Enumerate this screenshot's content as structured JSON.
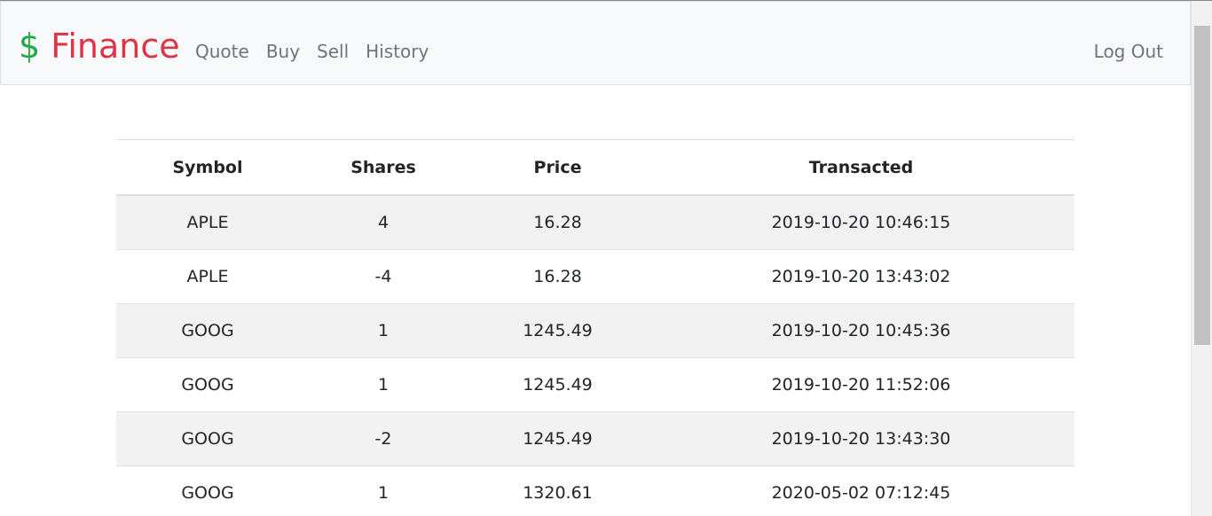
{
  "navbar": {
    "brand_symbol": "$",
    "brand_name": "Finance",
    "links": [
      "Quote",
      "Buy",
      "Sell",
      "History"
    ],
    "logout": "Log Out"
  },
  "table": {
    "headers": [
      "Symbol",
      "Shares",
      "Price",
      "Transacted"
    ],
    "rows": [
      [
        "APLE",
        "4",
        "16.28",
        "2019-10-20 10:46:15"
      ],
      [
        "APLE",
        "-4",
        "16.28",
        "2019-10-20 13:43:02"
      ],
      [
        "GOOG",
        "1",
        "1245.49",
        "2019-10-20 10:45:36"
      ],
      [
        "GOOG",
        "1",
        "1245.49",
        "2019-10-20 11:52:06"
      ],
      [
        "GOOG",
        "-2",
        "1245.49",
        "2019-10-20 13:43:30"
      ],
      [
        "GOOG",
        "1",
        "1320.61",
        "2020-05-02 07:12:45"
      ]
    ]
  },
  "colors": {
    "brand_symbol": "#28a745",
    "brand_name": "#dc3545",
    "nav_link": "#6c757d",
    "navbar_bg": "#f8f9fa",
    "stripe": "#f2f2f2"
  }
}
